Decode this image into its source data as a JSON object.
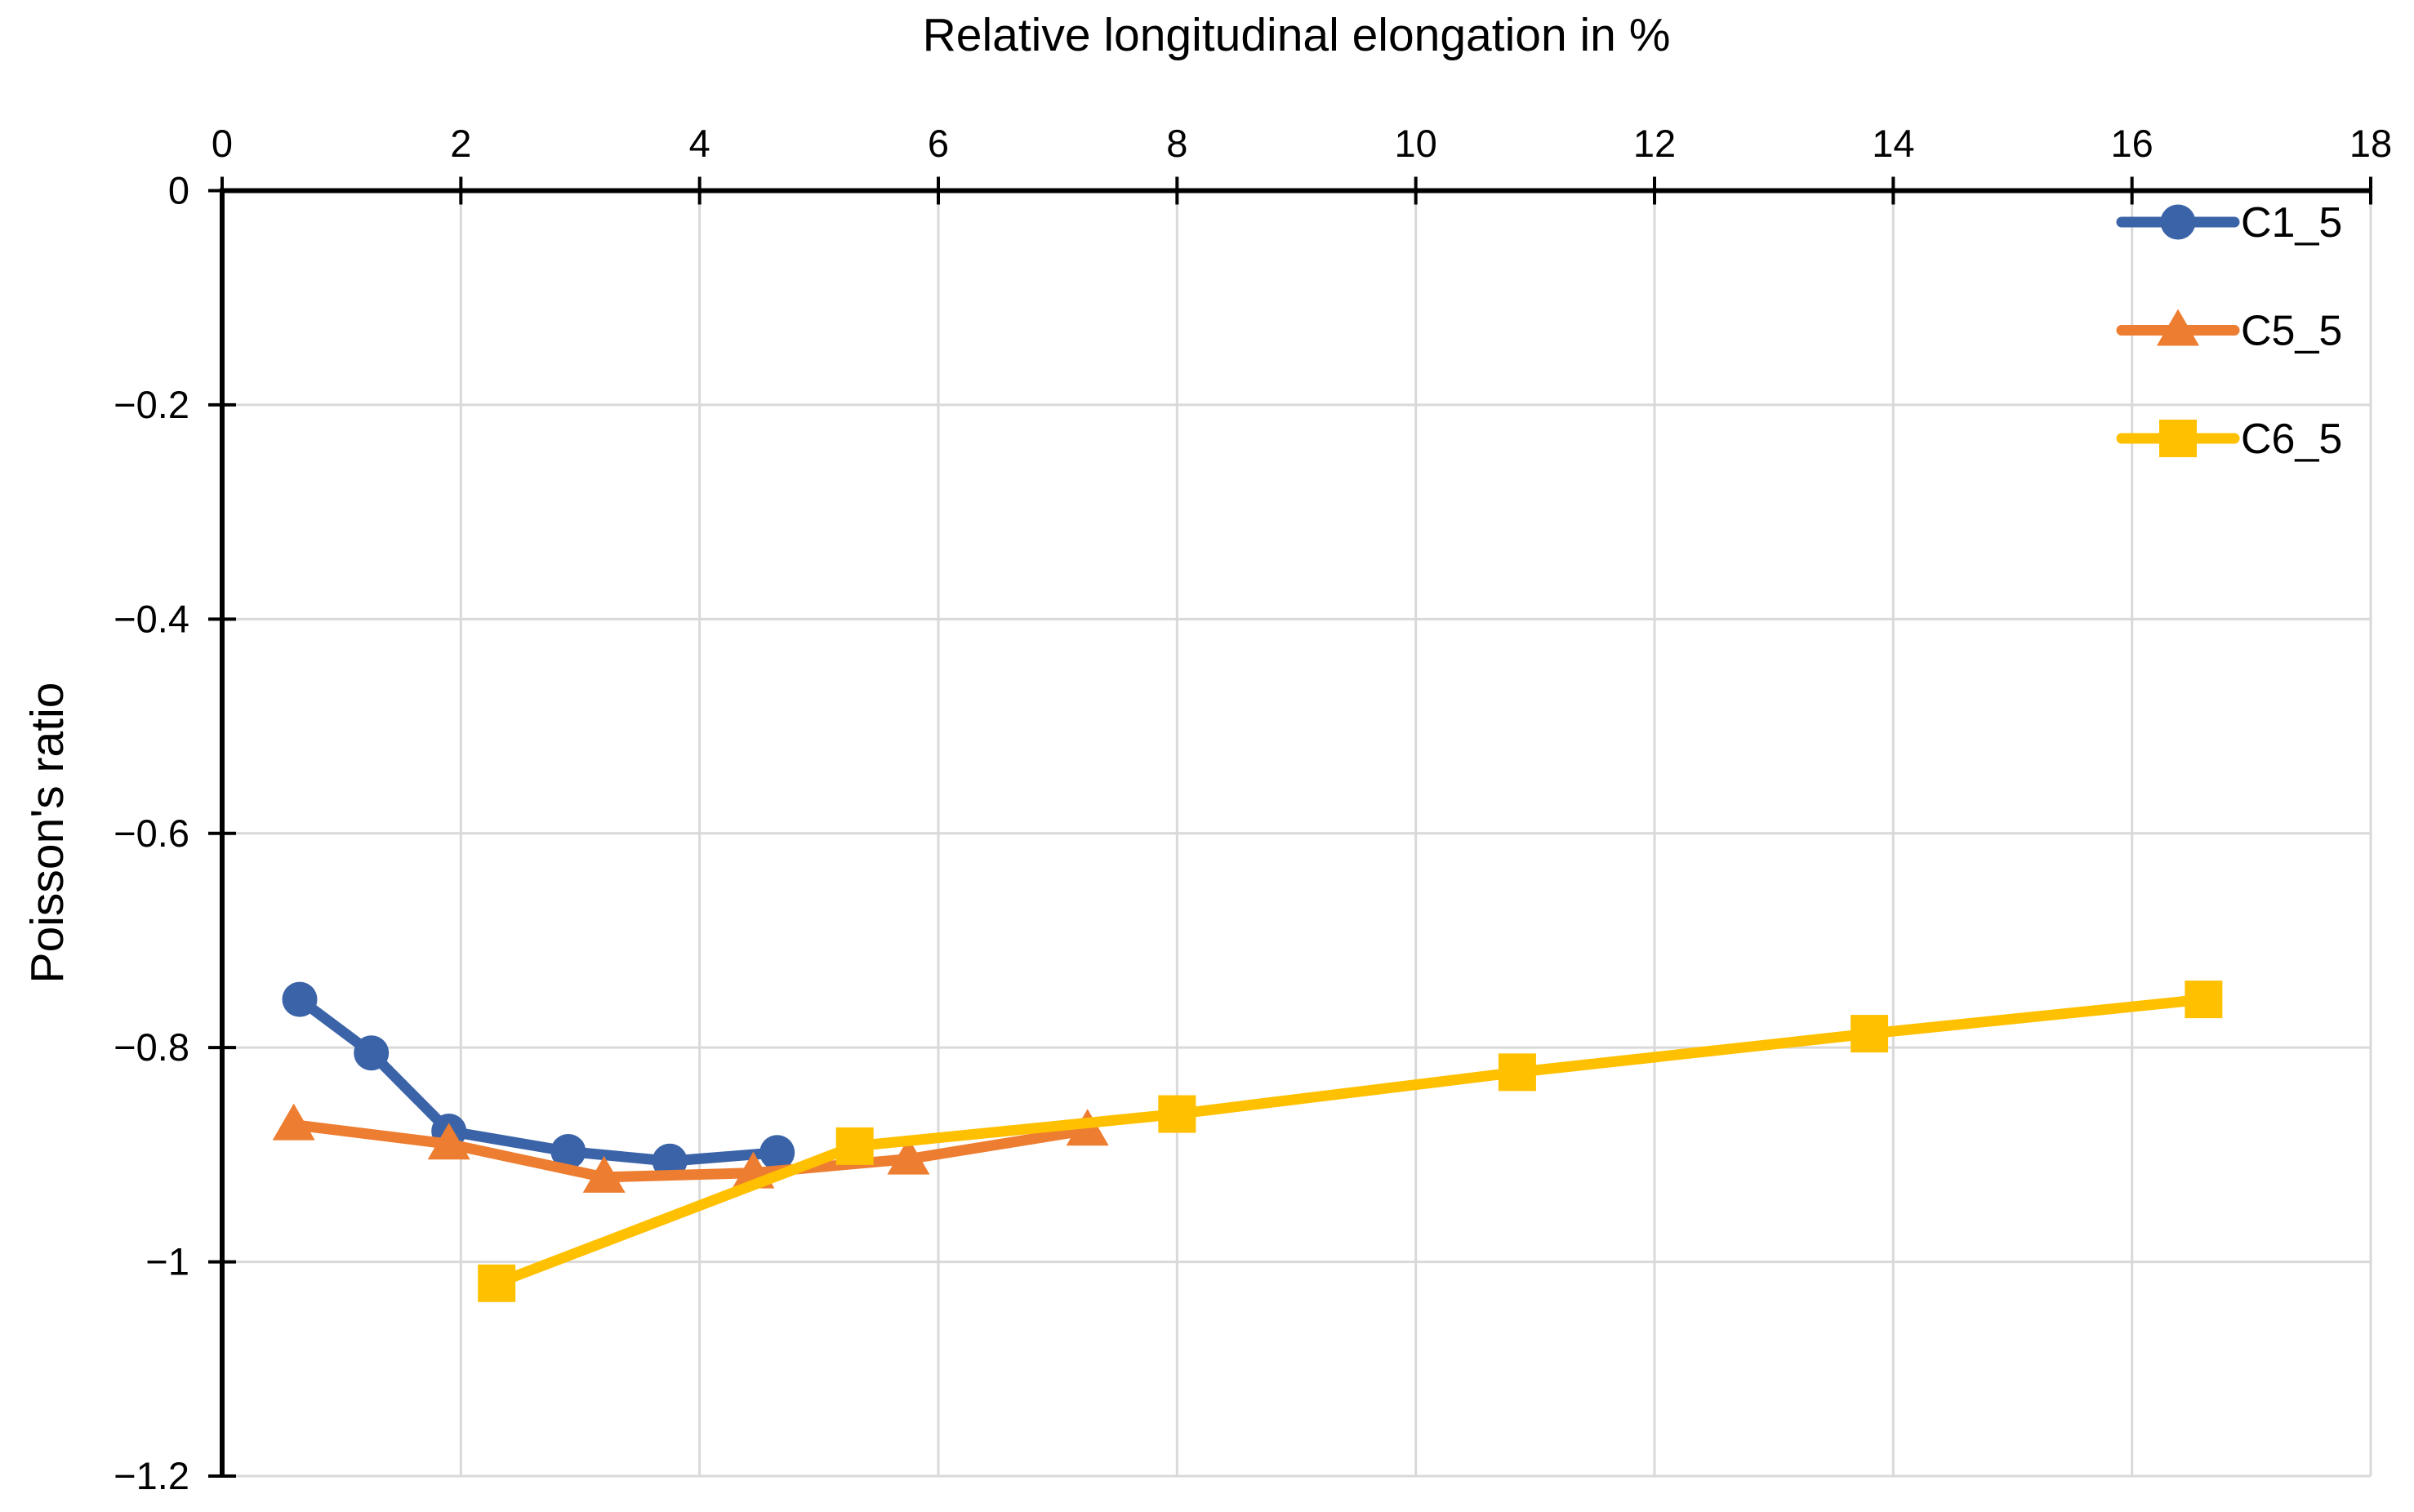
{
  "chart_data": {
    "type": "line",
    "title": "Relative longitudinal elongation in %",
    "title_position": "top",
    "ylabel": "Poisson's ratio",
    "xlabel": "Relative longitudinal elongation in %",
    "xlim": [
      0,
      18
    ],
    "ylim": [
      -1.2,
      0
    ],
    "x_axis_position": "top",
    "x_ticks": [
      0,
      2,
      4,
      6,
      8,
      10,
      12,
      14,
      16,
      18
    ],
    "x_tick_labels": [
      "0",
      "2",
      "4",
      "6",
      "8",
      "10",
      "12",
      "14",
      "16",
      "18"
    ],
    "y_ticks": [
      0,
      -0.2,
      -0.4,
      -0.6,
      -0.8,
      -1,
      -1.2
    ],
    "y_tick_labels": [
      "0",
      "−0.2",
      "−0.4",
      "−0.6",
      "−0.8",
      "−1",
      "−1.2"
    ],
    "grid": true,
    "grid_color": "#D9D9D9",
    "axis_color": "#000000",
    "legend_position": "top-right",
    "series": [
      {
        "name": "C1_5",
        "color": "#3B63A8",
        "marker": "circle",
        "points": [
          [
            0.65,
            -0.755
          ],
          [
            1.25,
            -0.805
          ],
          [
            1.9,
            -0.878
          ],
          [
            2.9,
            -0.897
          ],
          [
            3.75,
            -0.906
          ],
          [
            4.65,
            -0.898
          ]
        ]
      },
      {
        "name": "C5_5",
        "color": "#ED7D31",
        "marker": "triangle",
        "points": [
          [
            0.6,
            -0.872
          ],
          [
            1.9,
            -0.89
          ],
          [
            3.2,
            -0.921
          ],
          [
            4.45,
            -0.917
          ],
          [
            5.75,
            -0.904
          ],
          [
            7.25,
            -0.877
          ]
        ]
      },
      {
        "name": "C6_5",
        "color": "#FFC000",
        "marker": "square",
        "points": [
          [
            2.3,
            -1.02
          ],
          [
            5.3,
            -0.892
          ],
          [
            8.0,
            -0.862
          ],
          [
            10.85,
            -0.823
          ],
          [
            13.8,
            -0.787
          ],
          [
            16.6,
            -0.755
          ]
        ]
      }
    ]
  }
}
